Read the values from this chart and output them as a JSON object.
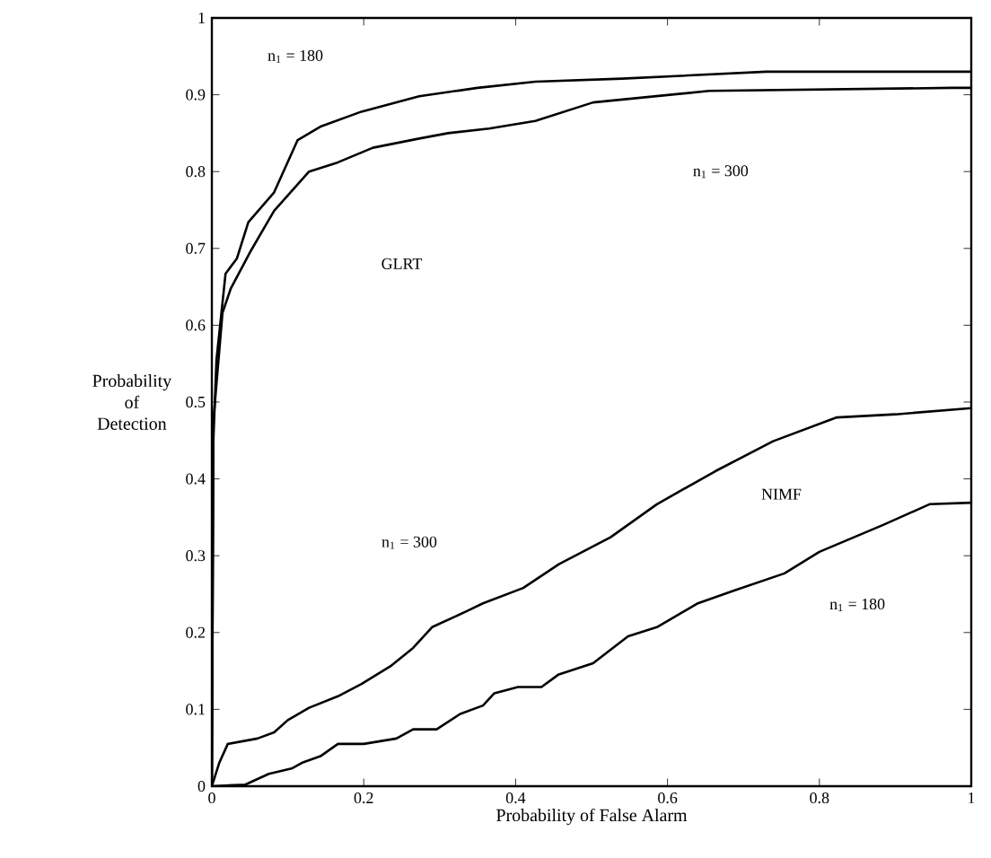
{
  "chart_data": {
    "type": "line",
    "xlabel": "Probability of False Alarm",
    "ylabel": "Probability of Detection",
    "xlim": [
      0,
      1
    ],
    "ylim": [
      0,
      1
    ],
    "xticks": [
      0,
      0.2,
      0.4,
      0.6,
      0.8,
      1
    ],
    "yticks": [
      0,
      0.1,
      0.2,
      0.3,
      0.4,
      0.5,
      0.6,
      0.7,
      0.8,
      0.9,
      1
    ],
    "grid": false,
    "line_style": "solid",
    "marker": "none",
    "series": [
      {
        "color": "#000000",
        "x": [
          0,
          0.002,
          0.006,
          0.018,
          0.033,
          0.048,
          0.082,
          0.113,
          0.144,
          0.197,
          0.273,
          0.35,
          0.426,
          0.54,
          0.73,
          1.0
        ],
        "values": [
          0,
          0.45,
          0.554,
          0.667,
          0.687,
          0.734,
          0.773,
          0.841,
          0.859,
          0.878,
          0.898,
          0.909,
          0.917,
          0.921,
          0.93,
          0.93
        ]
      },
      {
        "color": "#000000",
        "x": [
          0,
          0.002,
          0.014,
          0.025,
          0.052,
          0.082,
          0.128,
          0.166,
          0.212,
          0.273,
          0.311,
          0.365,
          0.426,
          0.502,
          0.655,
          0.975,
          1.0
        ],
        "values": [
          0,
          0.476,
          0.616,
          0.648,
          0.698,
          0.749,
          0.8,
          0.812,
          0.831,
          0.843,
          0.85,
          0.856,
          0.866,
          0.89,
          0.905,
          0.909,
          0.909
        ]
      },
      {
        "color": "#000000",
        "x": [
          0,
          0.01,
          0.021,
          0.06,
          0.082,
          0.1,
          0.128,
          0.166,
          0.197,
          0.235,
          0.265,
          0.29,
          0.334,
          0.357,
          0.41,
          0.457,
          0.525,
          0.586,
          0.663,
          0.739,
          0.823,
          0.9,
          1.0
        ],
        "values": [
          0,
          0.031,
          0.055,
          0.062,
          0.07,
          0.086,
          0.102,
          0.117,
          0.133,
          0.156,
          0.18,
          0.207,
          0.227,
          0.238,
          0.258,
          0.289,
          0.324,
          0.367,
          0.41,
          0.449,
          0.48,
          0.484,
          0.492
        ]
      },
      {
        "color": "#000000",
        "x": [
          0,
          0.044,
          0.075,
          0.105,
          0.12,
          0.143,
          0.166,
          0.2,
          0.243,
          0.265,
          0.296,
          0.327,
          0.357,
          0.372,
          0.403,
          0.434,
          0.456,
          0.502,
          0.548,
          0.586,
          0.64,
          0.686,
          0.754,
          0.8,
          0.884,
          0.945,
          1.0
        ],
        "values": [
          0,
          0.002,
          0.016,
          0.023,
          0.031,
          0.039,
          0.055,
          0.055,
          0.062,
          0.074,
          0.074,
          0.094,
          0.105,
          0.121,
          0.129,
          0.129,
          0.145,
          0.16,
          0.195,
          0.207,
          0.238,
          0.254,
          0.277,
          0.305,
          0.34,
          0.367,
          0.369
        ]
      }
    ],
    "annotations": [
      "n$_{1}$ = 180",
      "n$_{1}$ = 300",
      "GLRT",
      "n$_{1}$ = 300",
      "NIMF",
      "n$_{1}$ = 180"
    ]
  }
}
